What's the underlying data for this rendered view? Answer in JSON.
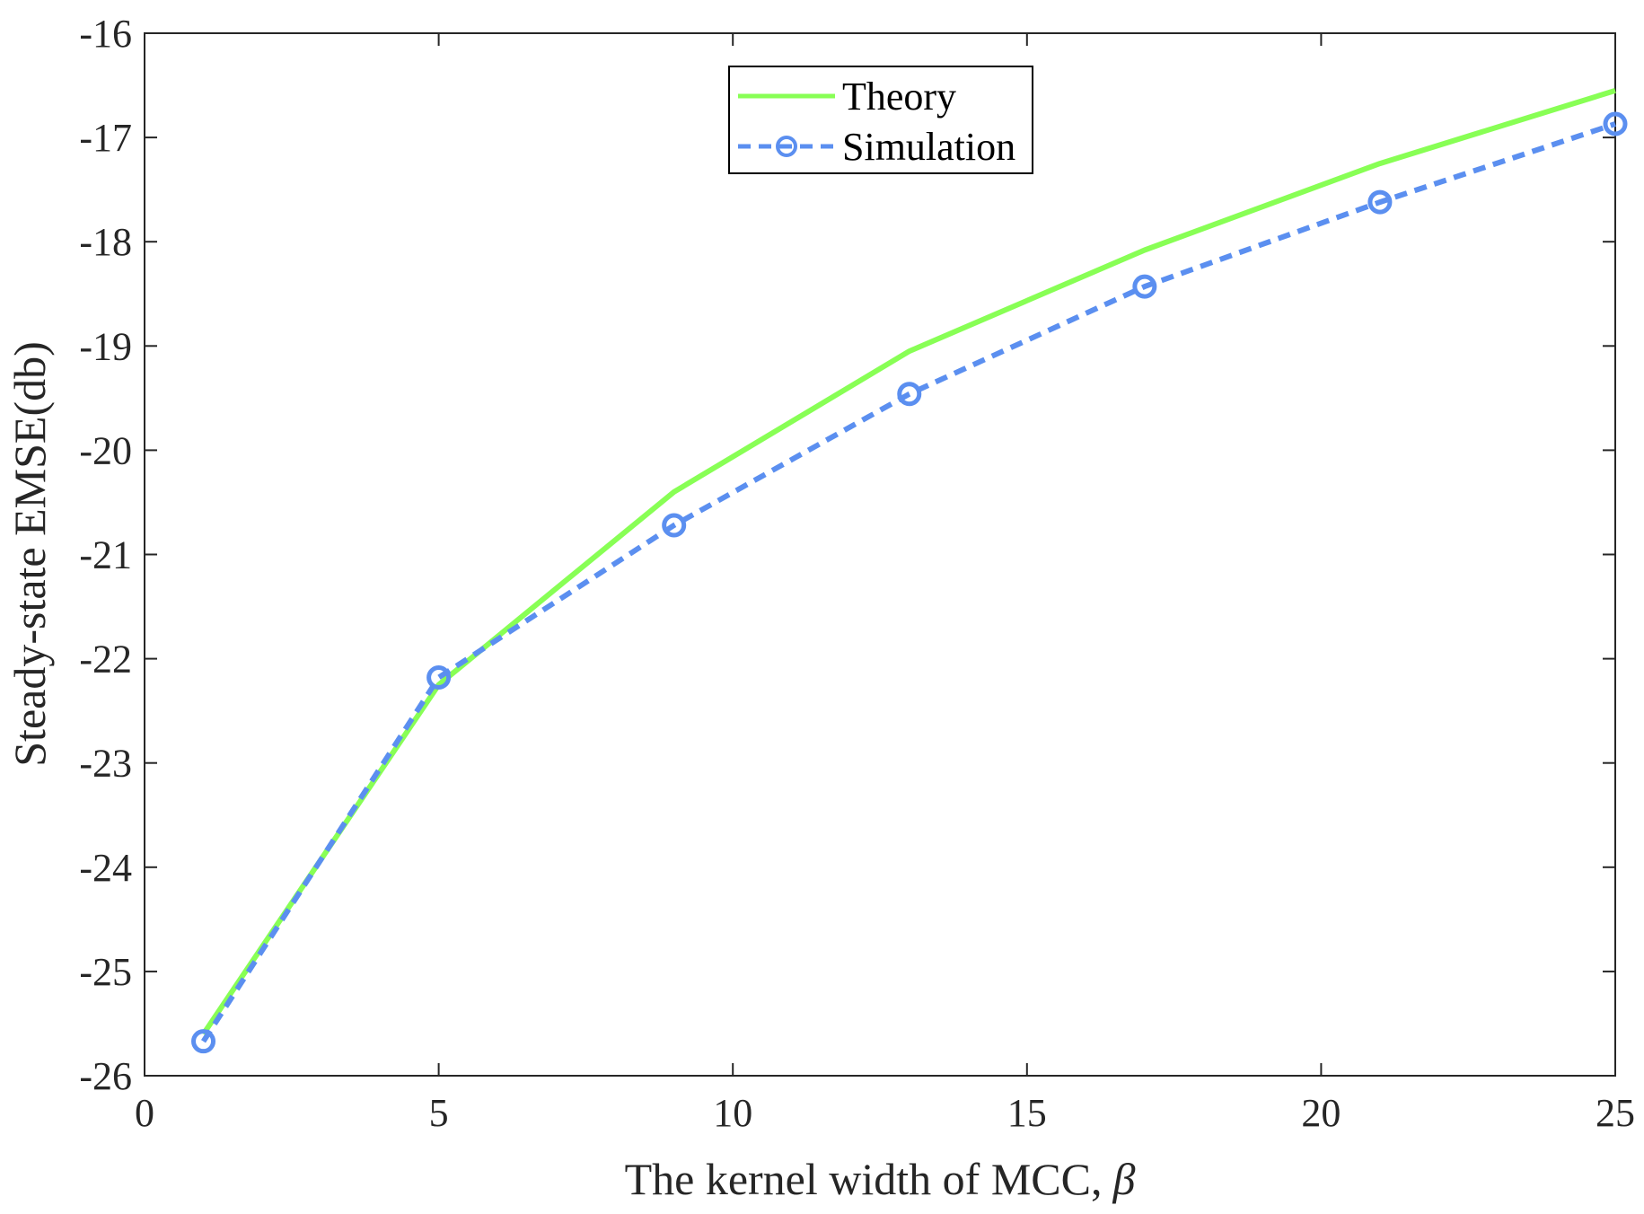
{
  "chart_data": {
    "type": "line",
    "title": "",
    "xlabel": "The kernel width of MCC,",
    "xlabel_symbol": "β",
    "ylabel": "Steady-state EMSE(db)",
    "xlim": [
      0,
      25
    ],
    "ylim": [
      -26,
      -16
    ],
    "xticks": [
      0,
      5,
      10,
      15,
      20,
      25
    ],
    "yticks": [
      -16,
      -17,
      -18,
      -19,
      -20,
      -21,
      -22,
      -23,
      -24,
      -25,
      -26
    ],
    "grid": false,
    "legend_position": "top-center",
    "series": [
      {
        "name": "Theory",
        "style": "solid",
        "color": "#88ff55",
        "marker": "none",
        "x": [
          1,
          5,
          9,
          13,
          17,
          21,
          25
        ],
        "y": [
          -25.6,
          -22.25,
          -20.4,
          -19.05,
          -18.08,
          -17.25,
          -16.55
        ]
      },
      {
        "name": "Simulation",
        "style": "dashed",
        "color": "#5b8ff0",
        "marker": "circle",
        "x": [
          1,
          5,
          9,
          13,
          17,
          21,
          25
        ],
        "y": [
          -25.67,
          -22.18,
          -20.72,
          -19.46,
          -18.43,
          -17.62,
          -16.87
        ]
      }
    ]
  }
}
